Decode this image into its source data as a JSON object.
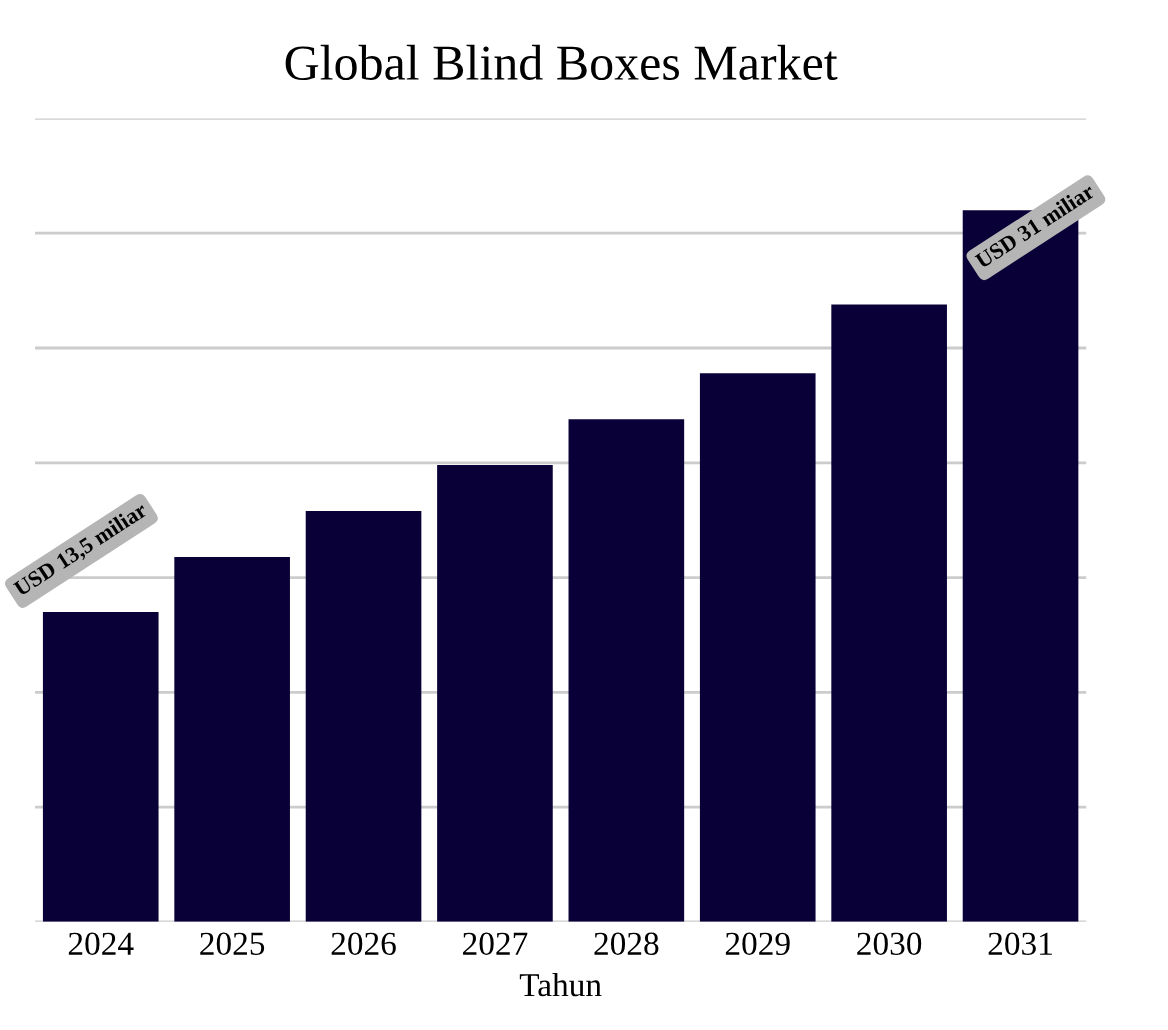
{
  "chart_data": {
    "type": "bar",
    "title": "Global Blind Boxes Market",
    "xlabel": "Tahun",
    "categories": [
      "2024",
      "2025",
      "2026",
      "2027",
      "2028",
      "2029",
      "2030",
      "2031"
    ],
    "values": [
      13.5,
      15.9,
      17.9,
      19.9,
      21.9,
      23.9,
      26.9,
      31
    ],
    "value_labels": [
      "USD 13,5 miliar",
      null,
      null,
      null,
      null,
      null,
      null,
      "USD 31 miliar"
    ],
    "color": "#0a0038",
    "ylim": [
      0,
      35
    ],
    "yticks": [
      {
        "value": 0,
        "label": null
      },
      {
        "value": 5,
        "label": null
      },
      {
        "value": 10,
        "label": null
      },
      {
        "value": 15,
        "label": null
      },
      {
        "value": 20,
        "label": null
      },
      {
        "value": 25,
        "label": null
      },
      {
        "value": 30,
        "label": null
      },
      {
        "value": 35,
        "label": null
      }
    ],
    "grid": "y",
    "tick_labels": "x",
    "legend": false
  }
}
